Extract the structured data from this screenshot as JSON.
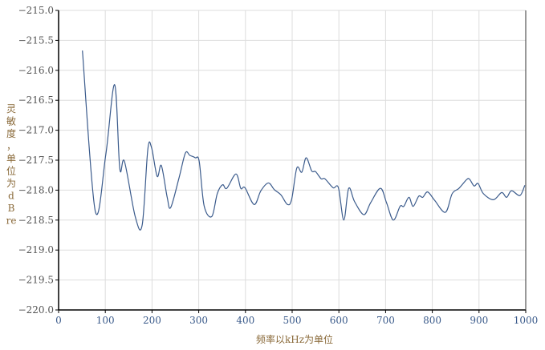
{
  "chart_data": {
    "type": "line",
    "title": "",
    "xlabel": "频率以kHz为单位",
    "ylabel": "灵敏度，单位为dB re",
    "xlim": [
      0,
      1000
    ],
    "ylim": [
      -220.0,
      -215.0
    ],
    "grid": true,
    "x_ticks": [
      "0",
      "100",
      "200",
      "300",
      "400",
      "500",
      "600",
      "700",
      "800",
      "900",
      "1000"
    ],
    "y_ticks": [
      "-215.0",
      "-215.5",
      "-216.0",
      "-216.5",
      "-217.0",
      "-217.5",
      "-218.0",
      "-218.5",
      "-219.0",
      "-219.5",
      "-220.0"
    ],
    "line_color": "#3b5b8c",
    "series": [
      {
        "x": [
          51,
          78.5,
          101,
          120,
          131,
          141,
          164,
          179,
          191,
          199,
          211,
          220,
          232.5,
          240,
          258,
          271.5,
          281,
          292.6,
          301,
          311.5,
          328,
          339.6,
          351,
          360,
          379.7,
          390,
          399,
          418.7,
          433,
          449,
          461.6,
          476,
          490,
          499,
          510,
          520.6,
          530,
          541.8,
          550,
          562,
          570,
          587.6,
          599,
          610.5,
          621,
          633.5,
          653.5,
          668,
          689,
          702,
          716.5,
          731,
          739,
          750,
          759,
          771,
          779.5,
          790,
          805,
          828,
          842.5,
          857,
          874,
          880,
          889.5,
          898,
          909.5,
          931,
          948.5,
          959,
          969.6,
          987.5,
          998
        ],
        "y": [
          -215.67,
          -218.35,
          -217.41,
          -216.24,
          -217.64,
          -217.52,
          -218.44,
          -218.58,
          -217.32,
          -217.29,
          -217.77,
          -217.59,
          -218.12,
          -218.29,
          -217.79,
          -217.38,
          -217.42,
          -217.46,
          -217.52,
          -218.26,
          -218.44,
          -218.06,
          -217.91,
          -217.97,
          -217.73,
          -217.97,
          -217.96,
          -218.24,
          -218.01,
          -217.88,
          -217.99,
          -218.08,
          -218.24,
          -218.15,
          -217.63,
          -217.7,
          -217.46,
          -217.68,
          -217.69,
          -217.81,
          -217.81,
          -217.96,
          -217.96,
          -218.5,
          -217.97,
          -218.19,
          -218.41,
          -218.21,
          -217.97,
          -218.21,
          -218.5,
          -218.27,
          -218.27,
          -218.12,
          -218.27,
          -218.1,
          -218.12,
          -218.03,
          -218.17,
          -218.37,
          -218.06,
          -217.97,
          -217.82,
          -217.82,
          -217.93,
          -217.89,
          -218.06,
          -218.16,
          -218.04,
          -218.12,
          -218.01,
          -218.09,
          -217.92
        ]
      }
    ]
  }
}
